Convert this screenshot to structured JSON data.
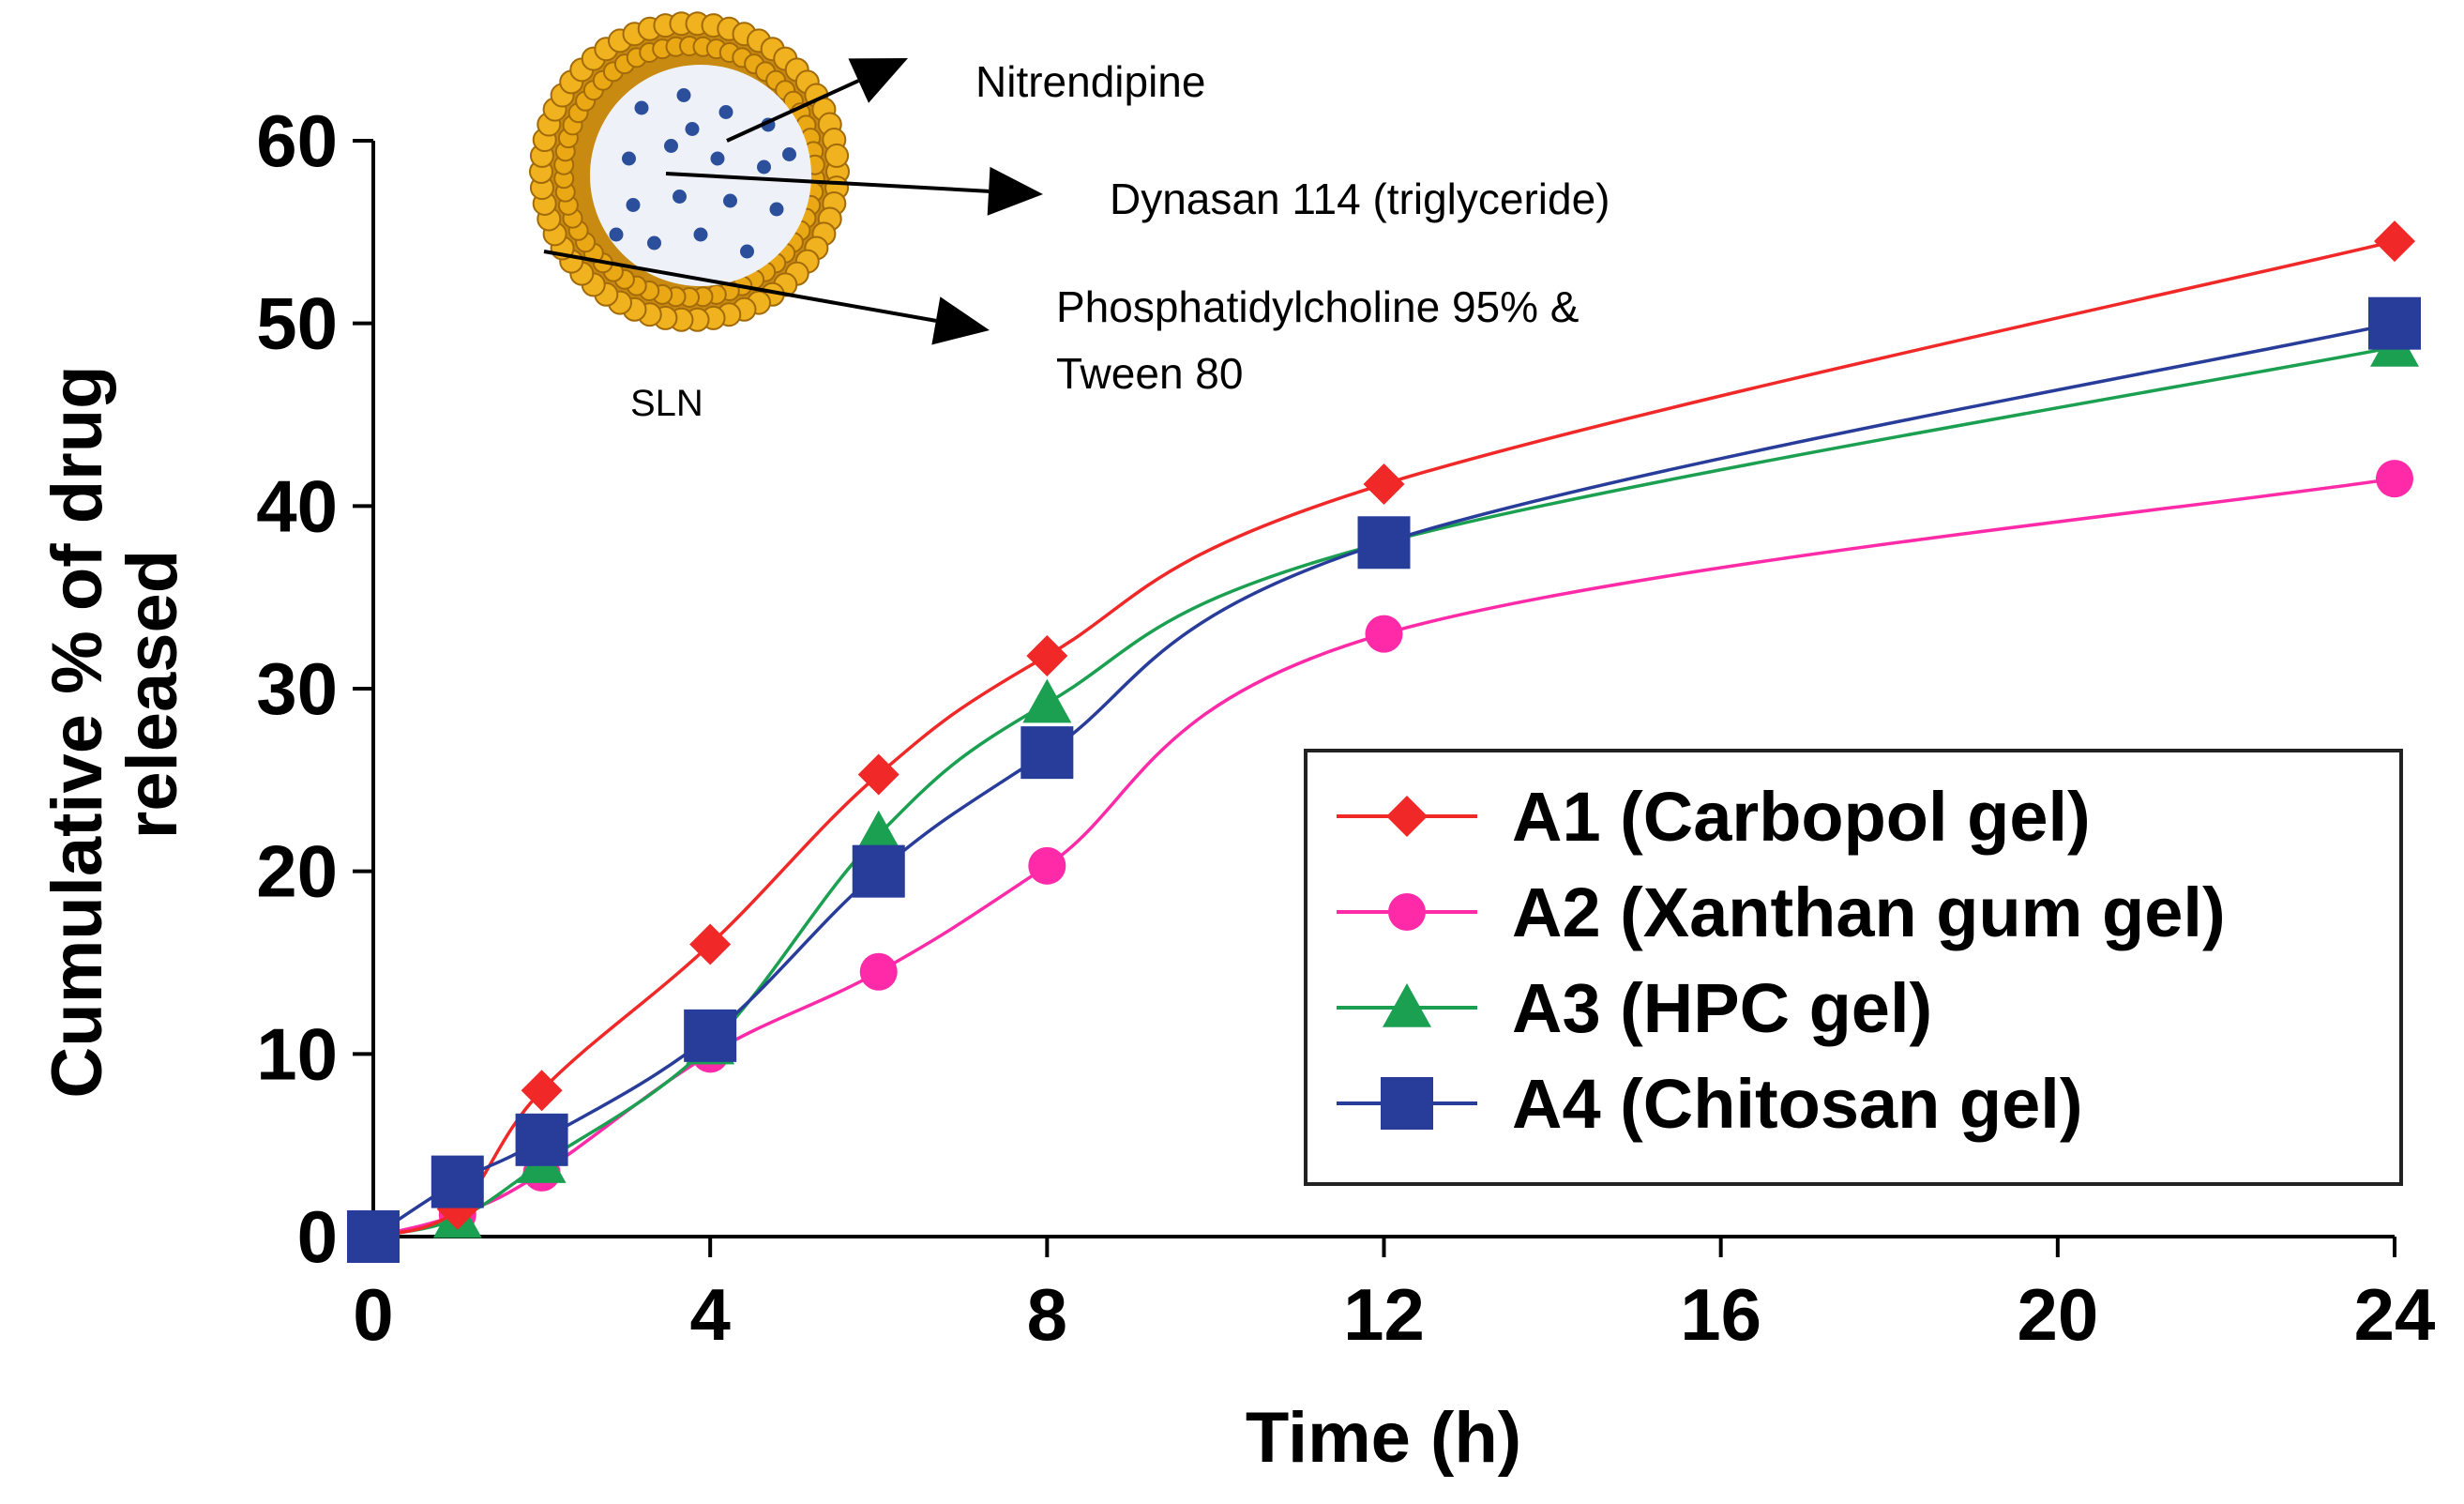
{
  "chart_data": {
    "type": "line",
    "title": "",
    "xlabel": "Time (h)",
    "ylabel_lines": [
      "Cumulative % of drug",
      "released"
    ],
    "x_ticks": [
      0,
      4,
      8,
      12,
      16,
      20,
      24
    ],
    "y_ticks": [
      0,
      10,
      20,
      30,
      40,
      50,
      60
    ],
    "xlim": [
      0,
      24
    ],
    "ylim": [
      0,
      60
    ],
    "grid": false,
    "legend_position": "bottom-right",
    "series": [
      {
        "name": "A1 (Carbopol gel)",
        "color": "#f02828",
        "marker": "diamond",
        "x": [
          0,
          1,
          2,
          4,
          6,
          8,
          12,
          24
        ],
        "y": [
          0,
          1.5,
          8,
          16,
          25.3,
          31.8,
          41.2,
          54.5
        ]
      },
      {
        "name": "A2 (Xanthan gum gel)",
        "color": "#ff2aa8",
        "marker": "circle",
        "x": [
          0,
          1,
          2,
          4,
          6,
          8,
          12,
          24
        ],
        "y": [
          0,
          1.2,
          3.5,
          10,
          14.5,
          20.3,
          33,
          41.5
        ]
      },
      {
        "name": "A3 (HPC gel)",
        "color": "#1aa050",
        "marker": "triangle",
        "x": [
          0,
          1,
          2,
          4,
          6,
          8,
          12,
          24
        ],
        "y": [
          0,
          1,
          4,
          10.5,
          22,
          29.2,
          38,
          48.7
        ]
      },
      {
        "name": "A4 (Chitosan gel)",
        "color": "#283c9a",
        "marker": "square",
        "x": [
          0,
          1,
          2,
          4,
          6,
          8,
          12,
          24
        ],
        "y": [
          0,
          3,
          5.3,
          11,
          20,
          26.5,
          38,
          50
        ]
      }
    ],
    "annotations": {
      "label_1": "Nitrendipine",
      "label_2": "Dynasan 114 (triglyceride)",
      "label_3_line1": "Phosphatidylcholine 95% &",
      "label_3_line2": "Tween 80",
      "particle_label": "SLN"
    }
  }
}
